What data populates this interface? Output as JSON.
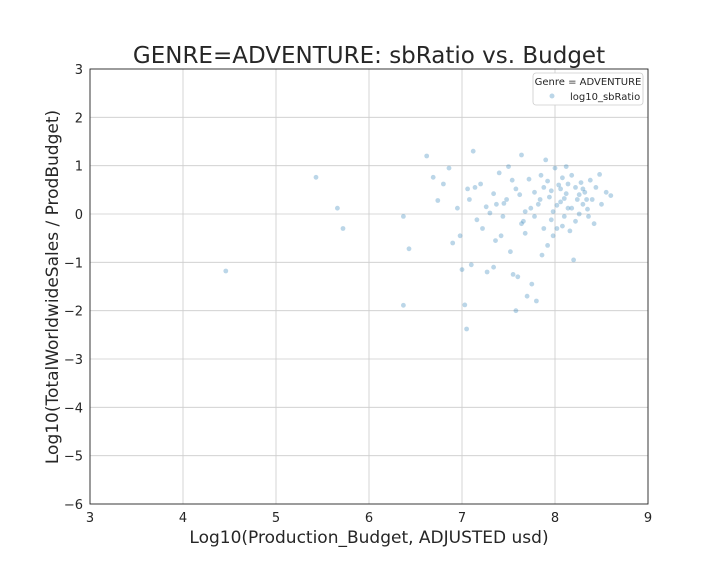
{
  "chart_data": {
    "type": "scatter",
    "title": "GENRE=ADVENTURE: sbRatio vs. Budget",
    "xlabel": "Log10(Production_Budget, ADJUSTED usd)",
    "ylabel": "Log10(TotalWorldwideSales / ProdBudget)",
    "xlim": [
      3,
      9
    ],
    "ylim": [
      -6,
      3
    ],
    "xticks": [
      "3",
      "4",
      "5",
      "6",
      "7",
      "8",
      "9"
    ],
    "yticks": [
      "3",
      "2",
      "1",
      "0",
      "−1",
      "−2",
      "−3",
      "−4",
      "−5",
      "−6"
    ],
    "grid": true,
    "legend": {
      "title": "Genre = ADVENTURE",
      "placement": "top-right",
      "entries": [
        "log10_sbRatio"
      ]
    },
    "series": [
      {
        "name": "log10_sbRatio",
        "color": "#1f77b4",
        "points": [
          [
            4.46,
            -1.18
          ],
          [
            5.43,
            0.76
          ],
          [
            5.66,
            0.12
          ],
          [
            5.72,
            -0.3
          ],
          [
            6.37,
            -0.05
          ],
          [
            6.37,
            -1.89
          ],
          [
            6.43,
            -0.72
          ],
          [
            6.62,
            1.2
          ],
          [
            6.69,
            0.76
          ],
          [
            6.74,
            0.28
          ],
          [
            6.8,
            0.62
          ],
          [
            6.86,
            0.95
          ],
          [
            6.9,
            -0.6
          ],
          [
            6.95,
            0.12
          ],
          [
            6.98,
            -0.45
          ],
          [
            7.0,
            -1.15
          ],
          [
            7.03,
            -1.88
          ],
          [
            7.05,
            -2.38
          ],
          [
            7.08,
            0.3
          ],
          [
            7.12,
            1.3
          ],
          [
            7.1,
            -1.05
          ],
          [
            7.14,
            0.55
          ],
          [
            7.2,
            0.62
          ],
          [
            7.22,
            -0.3
          ],
          [
            7.27,
            -1.2
          ],
          [
            7.3,
            0.02
          ],
          [
            7.34,
            -1.1
          ],
          [
            7.37,
            0.2
          ],
          [
            7.4,
            0.85
          ],
          [
            7.42,
            -0.45
          ],
          [
            7.45,
            0.22
          ],
          [
            7.5,
            0.98
          ],
          [
            7.52,
            -0.78
          ],
          [
            7.55,
            -1.25
          ],
          [
            7.58,
            -2.0
          ],
          [
            7.6,
            -1.3
          ],
          [
            7.62,
            0.4
          ],
          [
            7.64,
            1.22
          ],
          [
            7.66,
            -0.15
          ],
          [
            7.7,
            -1.7
          ],
          [
            7.72,
            0.72
          ],
          [
            7.75,
            -1.45
          ],
          [
            7.78,
            -0.05
          ],
          [
            7.8,
            -1.8
          ],
          [
            7.82,
            0.2
          ],
          [
            7.85,
            0.8
          ],
          [
            7.88,
            0.55
          ],
          [
            7.9,
            1.12
          ],
          [
            7.92,
            -0.65
          ],
          [
            7.94,
            0.35
          ],
          [
            7.96,
            0.48
          ],
          [
            7.98,
            0.05
          ],
          [
            8.0,
            0.95
          ],
          [
            8.02,
            -0.3
          ],
          [
            8.04,
            0.6
          ],
          [
            8.06,
            0.25
          ],
          [
            8.08,
            0.75
          ],
          [
            8.1,
            -0.05
          ],
          [
            8.12,
            0.42
          ],
          [
            8.14,
            0.12
          ],
          [
            8.16,
            -0.35
          ],
          [
            8.18,
            0.8
          ],
          [
            8.2,
            -0.95
          ],
          [
            8.22,
            0.55
          ],
          [
            8.24,
            0.3
          ],
          [
            8.26,
            0.0
          ],
          [
            8.28,
            0.65
          ],
          [
            8.3,
            0.2
          ],
          [
            8.32,
            0.45
          ],
          [
            8.35,
            0.1
          ],
          [
            8.38,
            0.7
          ],
          [
            8.4,
            0.3
          ],
          [
            8.44,
            0.55
          ],
          [
            8.48,
            0.82
          ],
          [
            8.5,
            0.2
          ],
          [
            8.55,
            0.45
          ],
          [
            8.6,
            0.38
          ],
          [
            8.42,
            -0.2
          ],
          [
            8.36,
            -0.05
          ],
          [
            7.86,
            -0.85
          ],
          [
            7.68,
            -0.4
          ],
          [
            7.58,
            0.52
          ],
          [
            7.48,
            0.3
          ],
          [
            7.36,
            -0.55
          ],
          [
            7.26,
            0.15
          ],
          [
            7.16,
            -0.12
          ],
          [
            7.06,
            0.52
          ],
          [
            8.12,
            0.98
          ],
          [
            8.08,
            -0.25
          ],
          [
            7.98,
            -0.45
          ],
          [
            7.92,
            0.68
          ],
          [
            8.02,
            0.18
          ],
          [
            8.14,
            0.62
          ],
          [
            8.26,
            0.4
          ],
          [
            7.84,
            0.3
          ],
          [
            7.74,
            0.12
          ],
          [
            7.64,
            -0.2
          ],
          [
            7.54,
            0.7
          ],
          [
            7.44,
            -0.05
          ],
          [
            7.34,
            0.42
          ],
          [
            8.18,
            0.12
          ],
          [
            8.3,
            0.52
          ],
          [
            8.22,
            -0.15
          ],
          [
            7.96,
            -0.12
          ],
          [
            8.06,
            0.52
          ],
          [
            7.88,
            -0.3
          ],
          [
            7.78,
            0.45
          ],
          [
            7.68,
            0.05
          ],
          [
            8.1,
            0.32
          ],
          [
            8.34,
            0.3
          ]
        ]
      }
    ]
  }
}
